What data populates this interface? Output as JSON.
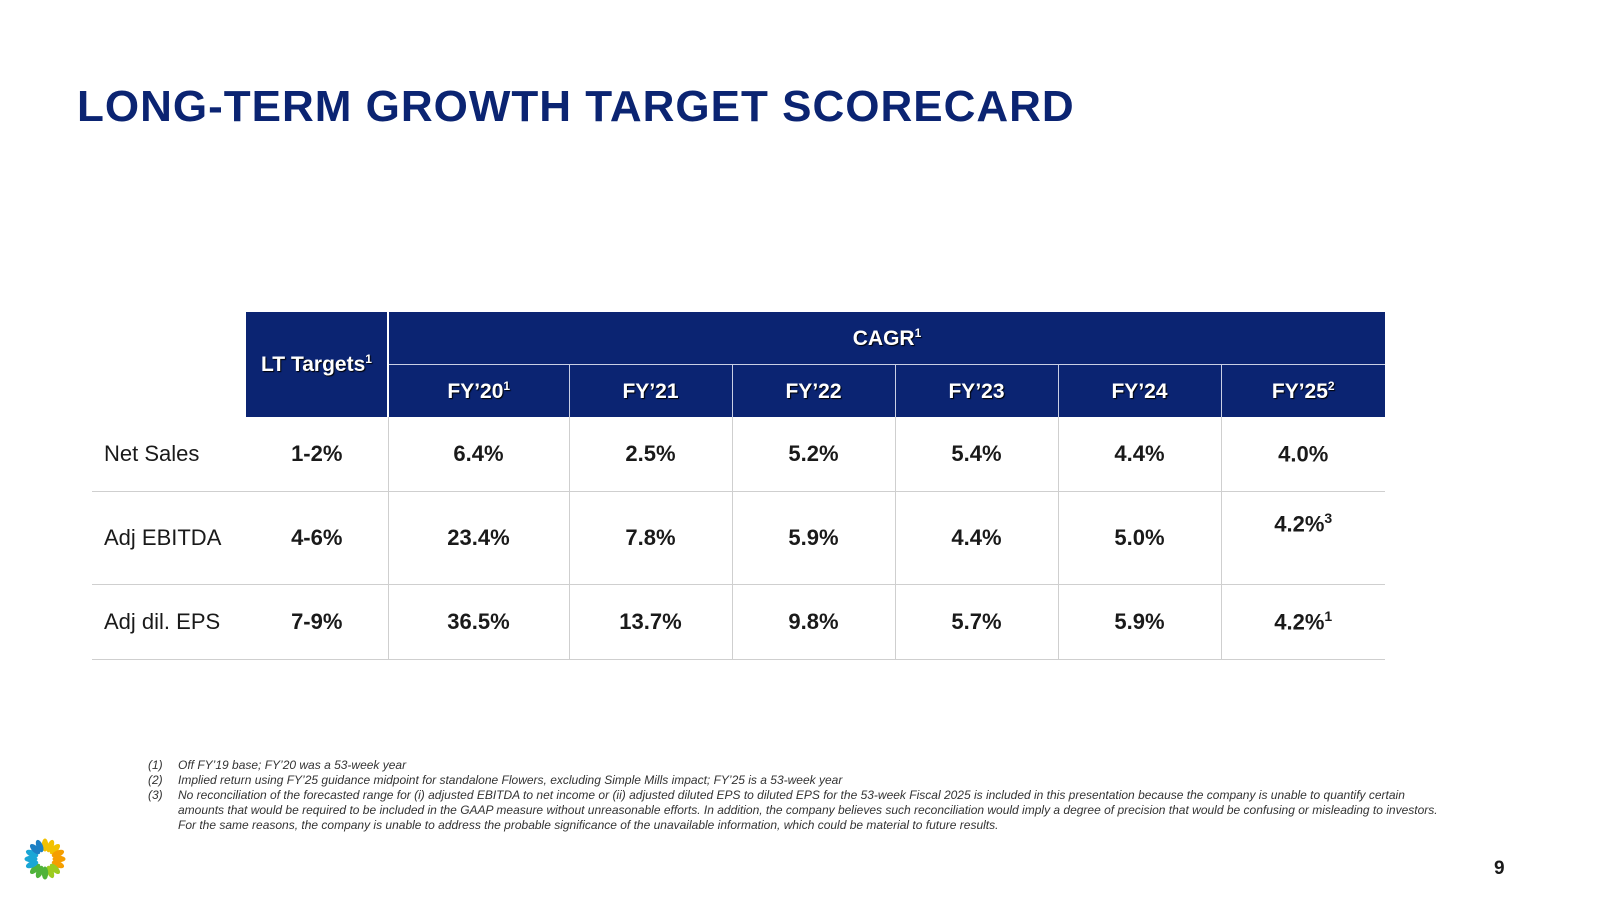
{
  "title": "LONG-TERM GROWTH TARGET SCORECARD",
  "table": {
    "lt_header": "LT Targets",
    "lt_header_sup": "1",
    "cagr_header": "CAGR",
    "cagr_header_sup": "1",
    "years": [
      {
        "label": "FY’20",
        "sup": "1"
      },
      {
        "label": "FY’21",
        "sup": ""
      },
      {
        "label": "FY’22",
        "sup": ""
      },
      {
        "label": "FY’23",
        "sup": ""
      },
      {
        "label": "FY’24",
        "sup": ""
      },
      {
        "label": "FY’25",
        "sup": "2"
      }
    ],
    "rows": [
      {
        "label": "Net Sales",
        "lt": "1-2%",
        "values": [
          "6.4%",
          "2.5%",
          "5.2%",
          "5.4%",
          "4.4%",
          "4.0%"
        ],
        "last_sup": ""
      },
      {
        "label": "Adj EBITDA",
        "lt": "4-6%",
        "values": [
          "23.4%",
          "7.8%",
          "5.9%",
          "4.4%",
          "5.0%",
          "4.2%"
        ],
        "last_sup": "3"
      },
      {
        "label": "Adj dil. EPS",
        "lt": "7-9%",
        "values": [
          "36.5%",
          "13.7%",
          "9.8%",
          "5.7%",
          "5.9%",
          "4.2%"
        ],
        "last_sup": "1"
      }
    ]
  },
  "footnotes": [
    {
      "num": "(1)",
      "text": "Off FY’19 base; FY’20 was a 53-week year"
    },
    {
      "num": "(2)",
      "text": "Implied return using FY’25 guidance midpoint for standalone Flowers, excluding Simple Mills impact; FY’25 is a 53-week year"
    },
    {
      "num": "(3)",
      "text": "No reconciliation of the forecasted range for (i) adjusted EBITDA to net income or (ii) adjusted diluted EPS to diluted EPS for the 53-week Fiscal 2025 is included in this presentation because the company is unable to quantify certain amounts that would be required to be included in the GAAP measure without unreasonable efforts. In addition, the company believes such reconciliation would imply a degree of precision that would be confusing or misleading to investors. For the same reasons, the company is unable to address the probable significance of the unavailable information, which could be material to future results."
    }
  ],
  "page_number": "9",
  "colors": {
    "brand_navy": "#0b2472",
    "logo_palette": [
      "#f2c100",
      "#f59e00",
      "#9ccc1f",
      "#4fb33a",
      "#1aa6d6",
      "#1c7fc4"
    ]
  },
  "icons": {
    "logo": "flower-logo-icon"
  }
}
